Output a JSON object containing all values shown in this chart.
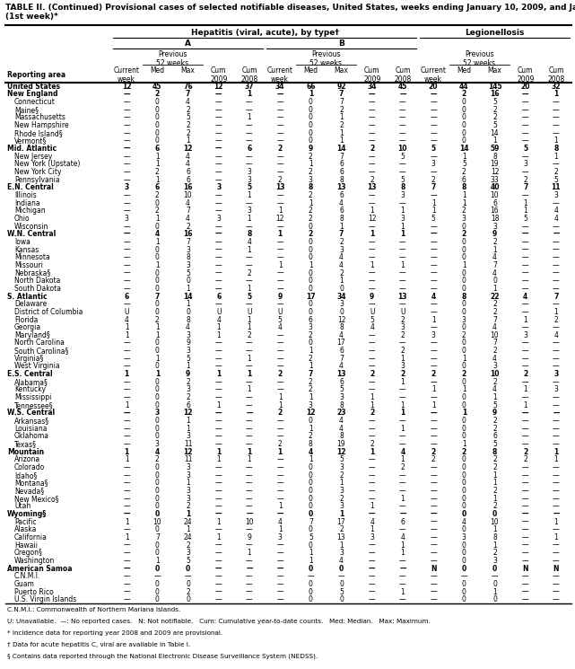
{
  "title": "TABLE II. (Continued) Provisional cases of selected notifiable diseases, United States, weeks ending January 10, 2009, and January 5, 2008\n(1st week)*",
  "rows": [
    [
      "United States",
      "12",
      "45",
      "76",
      "12",
      "37",
      "34",
      "66",
      "92",
      "34",
      "45",
      "20",
      "44",
      "145",
      "20",
      "32"
    ],
    [
      "New England",
      "—",
      "2",
      "7",
      "—",
      "1",
      "—",
      "1",
      "7",
      "—",
      "—",
      "—",
      "2",
      "16",
      "—",
      "1"
    ],
    [
      "Connecticut",
      "—",
      "0",
      "4",
      "—",
      "—",
      "—",
      "0",
      "7",
      "—",
      "—",
      "—",
      "0",
      "5",
      "—",
      "—"
    ],
    [
      "Maine§",
      "—",
      "0",
      "2",
      "—",
      "—",
      "—",
      "0",
      "2",
      "—",
      "—",
      "—",
      "0",
      "2",
      "—",
      "—"
    ],
    [
      "Massachusetts",
      "—",
      "0",
      "5",
      "—",
      "1",
      "—",
      "0",
      "1",
      "—",
      "—",
      "—",
      "0",
      "2",
      "—",
      "—"
    ],
    [
      "New Hampshire",
      "—",
      "0",
      "2",
      "—",
      "—",
      "—",
      "0",
      "2",
      "—",
      "—",
      "—",
      "0",
      "5",
      "—",
      "—"
    ],
    [
      "Rhode Island§",
      "—",
      "0",
      "2",
      "—",
      "—",
      "—",
      "0",
      "1",
      "—",
      "—",
      "—",
      "0",
      "14",
      "—",
      "—"
    ],
    [
      "Vermont§",
      "—",
      "0",
      "1",
      "—",
      "—",
      "—",
      "0",
      "1",
      "—",
      "—",
      "—",
      "0",
      "1",
      "—",
      "1"
    ],
    [
      "Mid. Atlantic",
      "—",
      "6",
      "12",
      "—",
      "6",
      "2",
      "9",
      "14",
      "2",
      "10",
      "5",
      "14",
      "59",
      "5",
      "8"
    ],
    [
      "New Jersey",
      "—",
      "1",
      "4",
      "—",
      "—",
      "—",
      "2",
      "7",
      "—",
      "5",
      "—",
      "1",
      "8",
      "—",
      "1"
    ],
    [
      "New York (Upstate)",
      "—",
      "1",
      "4",
      "—",
      "—",
      "—",
      "1",
      "6",
      "—",
      "—",
      "3",
      "5",
      "19",
      "3",
      "—"
    ],
    [
      "New York City",
      "—",
      "2",
      "6",
      "—",
      "3",
      "—",
      "2",
      "6",
      "—",
      "—",
      "—",
      "2",
      "12",
      "—",
      "2"
    ],
    [
      "Pennsylvania",
      "—",
      "1",
      "6",
      "—",
      "3",
      "2",
      "3",
      "8",
      "2",
      "5",
      "2",
      "6",
      "33",
      "2",
      "5"
    ],
    [
      "E.N. Central",
      "3",
      "6",
      "16",
      "3",
      "5",
      "13",
      "8",
      "13",
      "13",
      "8",
      "7",
      "8",
      "40",
      "7",
      "11"
    ],
    [
      "Illinois",
      "—",
      "2",
      "10",
      "—",
      "1",
      "—",
      "2",
      "6",
      "—",
      "3",
      "—",
      "1",
      "10",
      "—",
      "3"
    ],
    [
      "Indiana",
      "—",
      "0",
      "4",
      "—",
      "—",
      "—",
      "1",
      "4",
      "—",
      "—",
      "1",
      "1",
      "6",
      "1",
      "—"
    ],
    [
      "Michigan",
      "—",
      "2",
      "7",
      "—",
      "3",
      "1",
      "2",
      "6",
      "1",
      "1",
      "1",
      "2",
      "16",
      "1",
      "4"
    ],
    [
      "Ohio",
      "3",
      "1",
      "4",
      "3",
      "1",
      "12",
      "2",
      "8",
      "12",
      "3",
      "5",
      "3",
      "18",
      "5",
      "4"
    ],
    [
      "Wisconsin",
      "—",
      "0",
      "2",
      "—",
      "—",
      "—",
      "0",
      "1",
      "—",
      "1",
      "—",
      "0",
      "3",
      "—",
      "—"
    ],
    [
      "W.N. Central",
      "—",
      "4",
      "16",
      "—",
      "8",
      "1",
      "2",
      "7",
      "1",
      "1",
      "—",
      "2",
      "9",
      "—",
      "—"
    ],
    [
      "Iowa",
      "—",
      "1",
      "7",
      "—",
      "4",
      "—",
      "0",
      "2",
      "—",
      "—",
      "—",
      "0",
      "2",
      "—",
      "—"
    ],
    [
      "Kansas",
      "—",
      "0",
      "3",
      "—",
      "1",
      "—",
      "0",
      "3",
      "—",
      "—",
      "—",
      "0",
      "1",
      "—",
      "—"
    ],
    [
      "Minnesota",
      "—",
      "0",
      "8",
      "—",
      "—",
      "—",
      "0",
      "4",
      "—",
      "—",
      "—",
      "0",
      "4",
      "—",
      "—"
    ],
    [
      "Missouri",
      "—",
      "1",
      "3",
      "—",
      "—",
      "1",
      "1",
      "4",
      "1",
      "1",
      "—",
      "1",
      "7",
      "—",
      "—"
    ],
    [
      "Nebraska§",
      "—",
      "0",
      "5",
      "—",
      "2",
      "—",
      "0",
      "2",
      "—",
      "—",
      "—",
      "0",
      "4",
      "—",
      "—"
    ],
    [
      "North Dakota",
      "—",
      "0",
      "0",
      "—",
      "—",
      "—",
      "0",
      "1",
      "—",
      "—",
      "—",
      "0",
      "0",
      "—",
      "—"
    ],
    [
      "South Dakota",
      "—",
      "0",
      "1",
      "—",
      "1",
      "—",
      "0",
      "0",
      "—",
      "—",
      "—",
      "0",
      "1",
      "—",
      "—"
    ],
    [
      "S. Atlantic",
      "6",
      "7",
      "14",
      "6",
      "5",
      "9",
      "17",
      "34",
      "9",
      "13",
      "4",
      "8",
      "22",
      "4",
      "7"
    ],
    [
      "Delaware",
      "—",
      "0",
      "1",
      "—",
      "—",
      "—",
      "0",
      "3",
      "—",
      "—",
      "—",
      "0",
      "2",
      "—",
      "—"
    ],
    [
      "District of Columbia",
      "U",
      "0",
      "0",
      "U",
      "U",
      "U",
      "0",
      "0",
      "U",
      "U",
      "—",
      "0",
      "2",
      "—",
      "1"
    ],
    [
      "Florida",
      "4",
      "2",
      "8",
      "4",
      "1",
      "5",
      "6",
      "12",
      "5",
      "2",
      "1",
      "3",
      "7",
      "1",
      "2"
    ],
    [
      "Georgia",
      "1",
      "1",
      "4",
      "1",
      "1",
      "4",
      "3",
      "8",
      "4",
      "3",
      "—",
      "0",
      "4",
      "—",
      "—"
    ],
    [
      "Maryland§",
      "1",
      "1",
      "3",
      "1",
      "2",
      "—",
      "2",
      "4",
      "—",
      "2",
      "3",
      "2",
      "10",
      "3",
      "4"
    ],
    [
      "North Carolina",
      "—",
      "0",
      "9",
      "—",
      "—",
      "—",
      "0",
      "17",
      "—",
      "—",
      "—",
      "0",
      "7",
      "—",
      "—"
    ],
    [
      "South Carolina§",
      "—",
      "0",
      "3",
      "—",
      "—",
      "—",
      "1",
      "6",
      "—",
      "2",
      "—",
      "0",
      "2",
      "—",
      "—"
    ],
    [
      "Virginia§",
      "—",
      "1",
      "5",
      "—",
      "1",
      "—",
      "2",
      "7",
      "—",
      "1",
      "—",
      "1",
      "4",
      "—",
      "—"
    ],
    [
      "West Virginia",
      "—",
      "0",
      "1",
      "—",
      "—",
      "—",
      "1",
      "4",
      "—",
      "3",
      "—",
      "0",
      "3",
      "—",
      "—"
    ],
    [
      "E.S. Central",
      "1",
      "1",
      "9",
      "1",
      "1",
      "2",
      "7",
      "13",
      "2",
      "2",
      "2",
      "2",
      "10",
      "2",
      "3"
    ],
    [
      "Alabama§",
      "—",
      "0",
      "2",
      "—",
      "—",
      "—",
      "2",
      "6",
      "—",
      "1",
      "—",
      "0",
      "2",
      "—",
      "—"
    ],
    [
      "Kentucky",
      "—",
      "0",
      "3",
      "—",
      "1",
      "—",
      "2",
      "5",
      "—",
      "—",
      "1",
      "1",
      "4",
      "1",
      "3"
    ],
    [
      "Mississippi",
      "—",
      "0",
      "2",
      "—",
      "—",
      "1",
      "1",
      "3",
      "1",
      "—",
      "—",
      "0",
      "1",
      "—",
      "—"
    ],
    [
      "Tennessee§",
      "1",
      "0",
      "6",
      "1",
      "—",
      "1",
      "3",
      "8",
      "1",
      "1",
      "1",
      "0",
      "5",
      "1",
      "—"
    ],
    [
      "W.S. Central",
      "—",
      "3",
      "12",
      "—",
      "—",
      "2",
      "12",
      "23",
      "2",
      "1",
      "—",
      "1",
      "9",
      "—",
      "—"
    ],
    [
      "Arkansas§",
      "—",
      "0",
      "1",
      "—",
      "—",
      "—",
      "0",
      "4",
      "—",
      "—",
      "—",
      "0",
      "2",
      "—",
      "—"
    ],
    [
      "Louisiana",
      "—",
      "0",
      "1",
      "—",
      "—",
      "—",
      "1",
      "4",
      "—",
      "1",
      "—",
      "0",
      "2",
      "—",
      "—"
    ],
    [
      "Oklahoma",
      "—",
      "0",
      "3",
      "—",
      "—",
      "—",
      "2",
      "8",
      "—",
      "—",
      "—",
      "0",
      "6",
      "—",
      "—"
    ],
    [
      "Texas§",
      "—",
      "3",
      "11",
      "—",
      "—",
      "2",
      "8",
      "19",
      "2",
      "—",
      "—",
      "1",
      "5",
      "—",
      "—"
    ],
    [
      "Mountain",
      "1",
      "4",
      "12",
      "1",
      "1",
      "1",
      "4",
      "12",
      "1",
      "4",
      "2",
      "2",
      "8",
      "2",
      "1"
    ],
    [
      "Arizona",
      "1",
      "2",
      "11",
      "1",
      "1",
      "—",
      "1",
      "5",
      "—",
      "1",
      "2",
      "0",
      "2",
      "2",
      "1"
    ],
    [
      "Colorado",
      "—",
      "0",
      "3",
      "—",
      "—",
      "—",
      "0",
      "3",
      "—",
      "2",
      "—",
      "0",
      "2",
      "—",
      "—"
    ],
    [
      "Idaho§",
      "—",
      "0",
      "3",
      "—",
      "—",
      "—",
      "0",
      "2",
      "—",
      "—",
      "—",
      "0",
      "1",
      "—",
      "—"
    ],
    [
      "Montana§",
      "—",
      "0",
      "1",
      "—",
      "—",
      "—",
      "0",
      "1",
      "—",
      "—",
      "—",
      "0",
      "1",
      "—",
      "—"
    ],
    [
      "Nevada§",
      "—",
      "0",
      "3",
      "—",
      "—",
      "—",
      "0",
      "3",
      "—",
      "—",
      "—",
      "0",
      "2",
      "—",
      "—"
    ],
    [
      "New Mexico§",
      "—",
      "0",
      "3",
      "—",
      "—",
      "—",
      "0",
      "2",
      "—",
      "1",
      "—",
      "0",
      "1",
      "—",
      "—"
    ],
    [
      "Utah",
      "—",
      "0",
      "2",
      "—",
      "—",
      "1",
      "0",
      "3",
      "1",
      "—",
      "—",
      "0",
      "2",
      "—",
      "—"
    ],
    [
      "Wyoming§",
      "—",
      "0",
      "1",
      "—",
      "—",
      "—",
      "0",
      "1",
      "—",
      "—",
      "—",
      "0",
      "0",
      "—",
      "—"
    ],
    [
      "Pacific",
      "1",
      "10",
      "24",
      "1",
      "10",
      "4",
      "7",
      "17",
      "4",
      "6",
      "—",
      "4",
      "10",
      "—",
      "1"
    ],
    [
      "Alaska",
      "—",
      "0",
      "1",
      "—",
      "—",
      "1",
      "0",
      "2",
      "1",
      "—",
      "—",
      "0",
      "1",
      "—",
      "—"
    ],
    [
      "California",
      "1",
      "7",
      "24",
      "1",
      "9",
      "3",
      "5",
      "13",
      "3",
      "4",
      "—",
      "3",
      "8",
      "—",
      "1"
    ],
    [
      "Hawaii",
      "—",
      "0",
      "2",
      "—",
      "—",
      "—",
      "0",
      "1",
      "—",
      "1",
      "—",
      "0",
      "1",
      "—",
      "—"
    ],
    [
      "Oregon§",
      "—",
      "0",
      "3",
      "—",
      "1",
      "—",
      "1",
      "3",
      "—",
      "1",
      "—",
      "0",
      "2",
      "—",
      "—"
    ],
    [
      "Washington",
      "—",
      "1",
      "5",
      "—",
      "—",
      "—",
      "1",
      "4",
      "—",
      "—",
      "—",
      "0",
      "3",
      "—",
      "—"
    ],
    [
      "American Samoa",
      "—",
      "0",
      "0",
      "—",
      "—",
      "—",
      "0",
      "0",
      "—",
      "—",
      "N",
      "0",
      "0",
      "N",
      "N"
    ],
    [
      "C.N.M.I.",
      "—",
      "—",
      "—",
      "—",
      "—",
      "—",
      "—",
      "—",
      "—",
      "—",
      "—",
      "—",
      "—",
      "—",
      "—"
    ],
    [
      "Guam",
      "—",
      "0",
      "0",
      "—",
      "—",
      "—",
      "0",
      "0",
      "—",
      "—",
      "—",
      "0",
      "0",
      "—",
      "—"
    ],
    [
      "Puerto Rico",
      "—",
      "0",
      "2",
      "—",
      "—",
      "—",
      "0",
      "5",
      "—",
      "1",
      "—",
      "0",
      "1",
      "—",
      "—"
    ],
    [
      "U.S. Virgin Islands",
      "—",
      "0",
      "0",
      "—",
      "—",
      "—",
      "0",
      "0",
      "—",
      "—",
      "—",
      "0",
      "0",
      "—",
      "—"
    ]
  ],
  "bold_rows": [
    0,
    1,
    8,
    13,
    19,
    27,
    37,
    42,
    47,
    55,
    62
  ],
  "section_gap_before": [
    1,
    8,
    13,
    19,
    27,
    37,
    42,
    47,
    55,
    62
  ],
  "footnotes": [
    "C.N.M.I.: Commonwealth of Northern Mariana Islands.",
    "U: Unavailable.  —: No reported cases.   N: Not notifiable.   Cum: Cumulative year-to-date counts.   Med: Median.   Max: Maximum.",
    "* Incidence data for reporting year 2008 and 2009 are provisional.",
    "† Data for acute hepatitis C, viral are available in Table I.",
    "§ Contains data reported through the National Electronic Disease Surveillance System (NEDSS)."
  ]
}
